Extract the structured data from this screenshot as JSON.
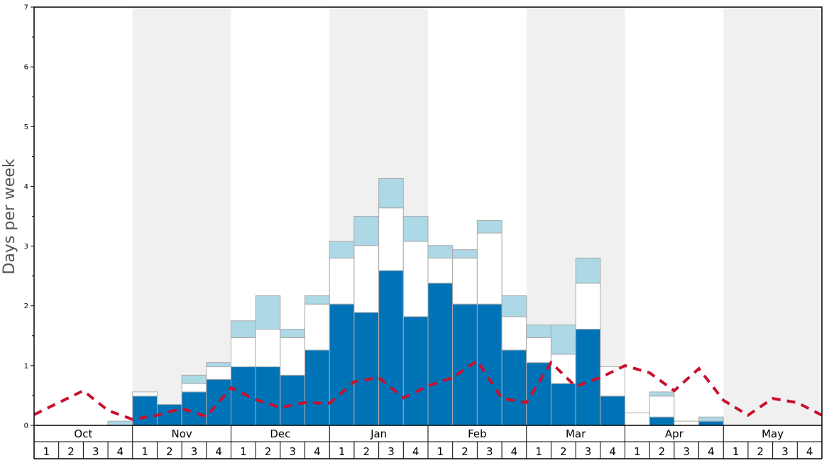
{
  "chart_data": {
    "type": "bar",
    "stacked": true,
    "ylabel": "Days per week",
    "ylim": [
      0,
      7
    ],
    "yticks": [
      "0",
      "1",
      "2",
      "3",
      "4",
      "5",
      "6",
      "7"
    ],
    "months": [
      "Oct",
      "Nov",
      "Dec",
      "Jan",
      "Feb",
      "Mar",
      "Apr",
      "May"
    ],
    "week_labels": [
      "1",
      "2",
      "3",
      "4"
    ],
    "shaded_months": [
      "Nov",
      "Jan",
      "Mar",
      "May"
    ],
    "colors": {
      "dark_blue": "#0073b7",
      "white": "#ffffff",
      "light_blue": "#add8e6",
      "red_dashed_line": "#c8102e",
      "shade": "#f0f0f0"
    },
    "series": [
      {
        "color": "#0073b7",
        "values": [
          0,
          0,
          0,
          0,
          0.49,
          0.35,
          0.56,
          0.77,
          0.98,
          0.98,
          0.84,
          1.26,
          2.03,
          1.89,
          2.59,
          1.82,
          2.38,
          2.03,
          2.03,
          1.26,
          1.05,
          0.7,
          1.61,
          0.49,
          0,
          0.14,
          0,
          0.07,
          0,
          0,
          0,
          0
        ]
      },
      {
        "color": "#ffffff",
        "values": [
          0,
          0,
          0,
          0,
          0.07,
          0,
          0.14,
          0.21,
          0.49,
          0.63,
          0.63,
          0.77,
          0.77,
          1.12,
          1.05,
          1.26,
          0.42,
          0.77,
          1.19,
          0.56,
          0.42,
          0.49,
          0.77,
          0.49,
          0.21,
          0.35,
          0.07,
          0,
          0,
          0,
          0,
          0
        ]
      },
      {
        "color": "#add8e6",
        "values": [
          0,
          0,
          0,
          0.07,
          0,
          0,
          0.14,
          0.07,
          0.28,
          0.56,
          0.14,
          0.14,
          0.28,
          0.49,
          0.49,
          0.42,
          0.21,
          0.14,
          0.21,
          0.35,
          0.21,
          0.49,
          0.42,
          0,
          0,
          0.07,
          0,
          0.07,
          0,
          0,
          0,
          0
        ]
      }
    ],
    "line_series": {
      "color": "#c8102e",
      "style": "dashed",
      "values": [
        0.18,
        0.38,
        0.58,
        0.25,
        0.1,
        0.17,
        0.28,
        0.15,
        0.63,
        0.43,
        0.3,
        0.38,
        0.37,
        0.73,
        0.8,
        0.46,
        0.66,
        0.8,
        1.08,
        0.45,
        0.38,
        1.05,
        0.65,
        0.8,
        1.0,
        0.88,
        0.58,
        0.95,
        0.42,
        0.17,
        0.45,
        0.38,
        0.17
      ]
    }
  }
}
